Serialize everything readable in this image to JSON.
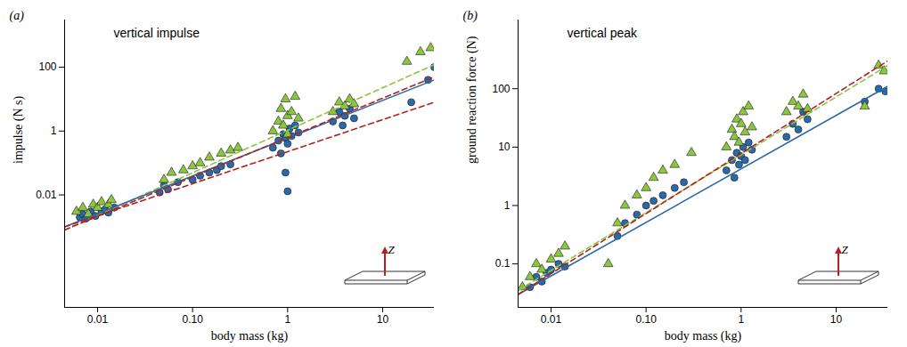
{
  "chart_data": [
    {
      "type": "scatter",
      "panel_label": "(a)",
      "title": "vertical impulse",
      "inset_label": "Z",
      "x_label": "body mass (kg)",
      "y_label": "impulse (N s)",
      "log": true,
      "grid": false,
      "xlim": [
        0.0045,
        35
      ],
      "ylim": [
        3e-06,
        3000
      ],
      "xticks": [
        0.01,
        {
          "value": 0.1,
          "label": "0.10"
        },
        1,
        10
      ],
      "yticks": [
        0.01,
        1,
        100
      ],
      "series": [
        {
          "type": "scatter",
          "color": "#2b6aa8",
          "marker": "circle",
          "x": [
            0.0065,
            0.007,
            0.0075,
            0.0085,
            0.0095,
            0.011,
            0.012,
            0.013,
            0.015,
            0.045,
            0.05,
            0.055,
            0.07,
            0.1,
            0.12,
            0.15,
            0.18,
            0.2,
            0.25,
            0.7,
            0.8,
            0.85,
            0.9,
            0.95,
            1.0,
            1.0,
            0.95,
            1.05,
            1.1,
            1.2,
            1.3,
            3.0,
            3.5,
            4.0,
            4.5,
            5.0,
            3.8,
            20,
            35,
            30
          ],
          "y": [
            0.002,
            0.0025,
            0.0018,
            0.003,
            0.0022,
            0.003,
            0.0035,
            0.0028,
            0.004,
            0.012,
            0.02,
            0.015,
            0.025,
            0.03,
            0.04,
            0.05,
            0.06,
            0.08,
            0.09,
            0.3,
            0.5,
            0.2,
            0.8,
            0.6,
            0.4,
            0.013,
            0.05,
            1.2,
            0.7,
            1.5,
            0.9,
            2,
            4,
            3,
            5,
            2.5,
            1.5,
            8,
            100,
            40
          ]
        },
        {
          "type": "scatter",
          "color": "#8cc63f",
          "marker": "triangle",
          "x": [
            0.006,
            0.007,
            0.008,
            0.009,
            0.01,
            0.011,
            0.013,
            0.014,
            0.05,
            0.06,
            0.08,
            0.1,
            0.12,
            0.15,
            0.2,
            0.25,
            0.3,
            0.7,
            0.8,
            0.85,
            0.9,
            0.95,
            1.0,
            1.0,
            1.1,
            1.2,
            1.3,
            3.0,
            3.5,
            4.0,
            4.5,
            5.0,
            18,
            25,
            32
          ],
          "y": [
            0.003,
            0.004,
            0.0025,
            0.005,
            0.004,
            0.006,
            0.005,
            0.007,
            0.03,
            0.05,
            0.06,
            0.08,
            0.1,
            0.15,
            0.2,
            0.25,
            0.3,
            1,
            2,
            5,
            1.5,
            10,
            3,
            0.8,
            4,
            12,
            2.5,
            4,
            8,
            6,
            10,
            7,
            150,
            300,
            400
          ]
        },
        {
          "type": "line",
          "color": "#8cc63f",
          "line_style": "dashed",
          "x": [
            0.0045,
            35
          ],
          "y": [
            0.0008,
            120
          ]
        },
        {
          "type": "line",
          "color": "#2b6aa8",
          "line_style": "solid",
          "x": [
            0.0045,
            35
          ],
          "y": [
            0.001,
            40
          ]
        },
        {
          "type": "line",
          "color": "#b22222",
          "line_style": "dashed",
          "x": [
            0.0045,
            35
          ],
          "y": [
            0.0008,
            50
          ]
        },
        {
          "type": "line",
          "color": "#b22222",
          "line_style": "dashed",
          "x": [
            0.0045,
            35
          ],
          "y": [
            0.001,
            8
          ]
        }
      ]
    },
    {
      "type": "scatter",
      "panel_label": "(b)",
      "title": "vertical peak",
      "inset_label": "Z",
      "x_label": "body mass (kg)",
      "y_label": "ground reaction force (N)",
      "log": true,
      "grid": false,
      "xlim": [
        0.0045,
        35
      ],
      "ylim": [
        0.018,
        1500
      ],
      "xticks": [
        0.01,
        {
          "value": 0.1,
          "label": "0.10"
        },
        1,
        10
      ],
      "yticks": [
        0.1,
        1,
        10,
        100
      ],
      "series": [
        {
          "type": "scatter",
          "color": "#2b6aa8",
          "marker": "circle",
          "x": [
            0.006,
            0.007,
            0.008,
            0.009,
            0.01,
            0.012,
            0.014,
            0.05,
            0.06,
            0.08,
            0.1,
            0.12,
            0.15,
            0.2,
            0.25,
            0.7,
            0.8,
            0.85,
            0.9,
            0.95,
            1.0,
            1.05,
            1.1,
            1.2,
            1.3,
            3.0,
            3.5,
            4.0,
            4.5,
            5.0,
            20,
            28,
            33
          ],
          "y": [
            0.04,
            0.06,
            0.05,
            0.07,
            0.08,
            0.1,
            0.09,
            0.3,
            0.5,
            0.7,
            1,
            1.2,
            1.5,
            2,
            2.5,
            4,
            6,
            3,
            8,
            5,
            7,
            10,
            6,
            12,
            9,
            15,
            25,
            20,
            40,
            30,
            60,
            100,
            90
          ]
        },
        {
          "type": "scatter",
          "color": "#8cc63f",
          "marker": "triangle",
          "x": [
            0.005,
            0.006,
            0.007,
            0.008,
            0.01,
            0.012,
            0.014,
            0.04,
            0.05,
            0.06,
            0.08,
            0.1,
            0.12,
            0.15,
            0.2,
            0.3,
            0.7,
            0.8,
            0.85,
            0.9,
            0.95,
            1.0,
            1.05,
            1.1,
            1.2,
            1.3,
            3.0,
            3.5,
            4.0,
            4.5,
            5.0,
            20,
            28,
            32
          ],
          "y": [
            0.04,
            0.06,
            0.1,
            0.08,
            0.12,
            0.15,
            0.2,
            0.1,
            0.5,
            1,
            1.5,
            2,
            3,
            4,
            5,
            8,
            10,
            20,
            15,
            30,
            12,
            25,
            40,
            18,
            50,
            22,
            40,
            60,
            50,
            80,
            45,
            50,
            250,
            200
          ]
        },
        {
          "type": "line",
          "color": "#8cc63f",
          "line_style": "dashed",
          "x": [
            0.0045,
            35
          ],
          "y": [
            0.035,
            250
          ]
        },
        {
          "type": "line",
          "color": "#2b6aa8",
          "line_style": "solid",
          "x": [
            0.0045,
            35
          ],
          "y": [
            0.03,
            110
          ]
        },
        {
          "type": "line",
          "color": "#b22222",
          "line_style": "dashed",
          "x": [
            0.0045,
            35
          ],
          "y": [
            0.03,
            300
          ]
        }
      ]
    }
  ]
}
